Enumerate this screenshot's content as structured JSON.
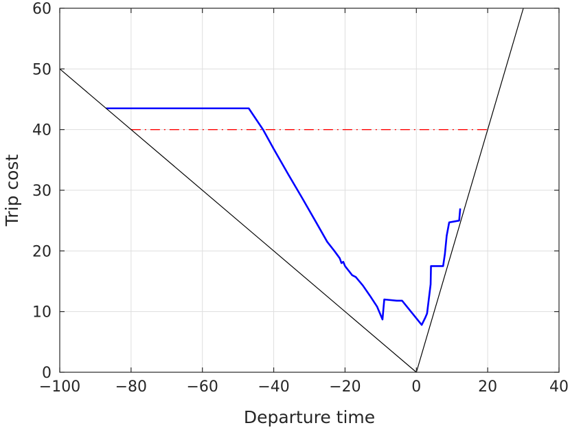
{
  "chart_data": {
    "type": "line",
    "title": "",
    "xlabel": "Departure time",
    "ylabel": "Trip cost",
    "xlim": [
      -100,
      40
    ],
    "ylim": [
      0,
      60
    ],
    "x_ticks": [
      -100,
      -80,
      -60,
      -40,
      -20,
      0,
      20,
      40
    ],
    "y_ticks": [
      0,
      10,
      20,
      30,
      40,
      50,
      60
    ],
    "x_tick_labels": [
      "−100",
      "−80",
      "−60",
      "−40",
      "−20",
      "0",
      "20",
      "40"
    ],
    "y_tick_labels": [
      "0",
      "10",
      "20",
      "30",
      "40",
      "50",
      "60"
    ],
    "grid": true,
    "legend": "none",
    "series": [
      {
        "color": "#0000ff",
        "style": "solid",
        "x": [
          -87,
          -47,
          -43,
          -40,
          -36,
          -32,
          -28,
          -25,
          -23,
          -21.5,
          -21,
          -20.5,
          -20,
          -18,
          -17,
          -15,
          -13,
          -11,
          -9.5,
          -9,
          -5.5,
          -4,
          1.5,
          2.5,
          3,
          4,
          4.1,
          7.5,
          8,
          8.5,
          9.2,
          12,
          12.3
        ],
        "y": [
          43.5,
          43.5,
          40,
          36.8,
          32.7,
          28.7,
          24.6,
          21.5,
          20,
          18.8,
          18,
          18.2,
          17.5,
          16,
          15.7,
          14.3,
          12.6,
          10.8,
          8.7,
          12,
          11.8,
          11.8,
          7.8,
          9,
          9.7,
          14.5,
          17.5,
          17.5,
          19.5,
          22.5,
          24.7,
          25,
          27
        ]
      },
      {
        "color": "#ff0000",
        "style": "dash-dot",
        "x": [
          -80,
          20
        ],
        "y": [
          40,
          40
        ]
      },
      {
        "color": "#000000",
        "style": "solid-thin",
        "x": [
          -100,
          0,
          30
        ],
        "y": [
          50,
          0,
          60
        ]
      }
    ]
  }
}
